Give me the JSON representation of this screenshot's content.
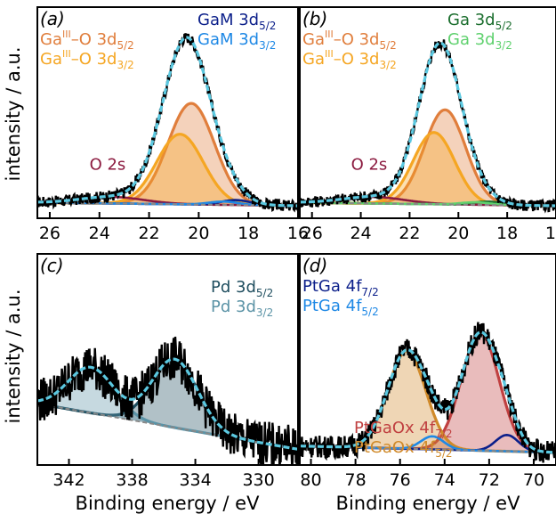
{
  "figure": {
    "xlabel": "Binding energy  /  eV",
    "ylabel": "intensity  /  a.u."
  },
  "colors": {
    "data": "#000000",
    "envelope": "#5bc8e0",
    "background": "#888888",
    "ga_oxide_52": "#e07e3c",
    "ga_oxide_32": "#f5a623",
    "O2s": "#8b1a3f",
    "ga_metal_52_a": "#0b1f8a",
    "ga_metal_32_a": "#1e88e5",
    "ga_metal_52_b": "#1b6e2e",
    "ga_metal_32_b": "#5fd16e",
    "pd_52": "#1f4e5f",
    "pd_32": "#5b93a6",
    "ptga_72": "#0b1f8a",
    "ptga_52": "#1e88e5",
    "ptgaox_72": "#c04040",
    "ptgaox_52": "#d08a2a"
  },
  "chart_data": [
    {
      "panel": "(a)",
      "type": "line",
      "xlim": [
        26.5,
        16
      ],
      "xticks": [
        "26",
        "24",
        "22",
        "20",
        "18",
        "16"
      ],
      "peaks": [
        {
          "label": "Ga^III–O 3d5/2",
          "center": 20.3,
          "height": 0.62,
          "fwhm": 2.2,
          "color": "ga_oxide_52",
          "filled": true
        },
        {
          "label": "Ga^III–O 3d3/2",
          "center": 20.75,
          "height": 0.43,
          "fwhm": 2.2,
          "color": "ga_oxide_32",
          "filled": true
        },
        {
          "label": "O 2s",
          "center": 23.5,
          "height": 0.04,
          "fwhm": 3.0,
          "color": "O2s",
          "filled": false
        },
        {
          "label": "GaM 3d5/2",
          "center": 18.5,
          "height": 0.03,
          "fwhm": 1.4,
          "color": "ga_metal_52_a",
          "filled": false
        },
        {
          "label": "GaM 3d3/2",
          "center": 19.0,
          "height": 0.02,
          "fwhm": 1.4,
          "color": "ga_metal_32_a",
          "filled": false
        }
      ],
      "baseline": [
        0.02,
        0.0
      ],
      "legend": [
        {
          "t": "Ga",
          "sup": "III",
          "m": "–O 3d",
          "sub": "5/2",
          "color": "ga_oxide_52",
          "side": "left"
        },
        {
          "t": "Ga",
          "sup": "III",
          "m": "–O 3d",
          "sub": "3/2",
          "color": "ga_oxide_32",
          "side": "left"
        },
        {
          "t": "GaM 3d",
          "sup": "",
          "m": "",
          "sub": "5/2",
          "color": "ga_metal_52_a",
          "side": "right"
        },
        {
          "t": "GaM 3d",
          "sup": "",
          "m": "",
          "sub": "3/2",
          "color": "ga_metal_32_a",
          "side": "right"
        }
      ],
      "annotation": {
        "text": "O 2s",
        "x": 24.4,
        "y": 0.22,
        "color": "O2s"
      }
    },
    {
      "panel": "(b)",
      "type": "line",
      "xlim": [
        26.5,
        16
      ],
      "xticks": [
        "26",
        "24",
        "22",
        "20",
        "18",
        "16"
      ],
      "peaks": [
        {
          "label": "Ga^III–O 3d5/2",
          "center": 20.55,
          "height": 0.58,
          "fwhm": 2.0,
          "color": "ga_oxide_52",
          "filled": true
        },
        {
          "label": "Ga^III–O 3d3/2",
          "center": 21.0,
          "height": 0.44,
          "fwhm": 2.0,
          "color": "ga_oxide_32",
          "filled": true
        },
        {
          "label": "O 2s",
          "center": 23.5,
          "height": 0.04,
          "fwhm": 3.0,
          "color": "O2s",
          "filled": false
        },
        {
          "label": "Ga 3d5/2",
          "center": 18.8,
          "height": 0.02,
          "fwhm": 1.4,
          "color": "ga_metal_52_b",
          "filled": false
        },
        {
          "label": "Ga 3d3/2",
          "center": 19.3,
          "height": 0.015,
          "fwhm": 1.4,
          "color": "ga_metal_32_b",
          "filled": false
        }
      ],
      "baseline": [
        0.02,
        0.0
      ],
      "legend": [
        {
          "t": "Ga",
          "sup": "III",
          "m": "–O 3d",
          "sub": "5/2",
          "color": "ga_oxide_52",
          "side": "left"
        },
        {
          "t": "Ga",
          "sup": "III",
          "m": "–O 3d",
          "sub": "3/2",
          "color": "ga_oxide_32",
          "side": "left"
        },
        {
          "t": "Ga 3d",
          "sup": "",
          "m": "",
          "sub": "5/2",
          "color": "ga_metal_52_b",
          "side": "right"
        },
        {
          "t": "Ga 3d",
          "sup": "",
          "m": "",
          "sub": "3/2",
          "color": "ga_metal_32_b",
          "side": "right"
        }
      ],
      "annotation": {
        "text": "O 2s",
        "x": 24.4,
        "y": 0.22,
        "color": "O2s"
      }
    },
    {
      "panel": "(c)",
      "type": "line",
      "xlim": [
        344,
        327.5
      ],
      "xticks": [
        "342",
        "338",
        "334",
        "330"
      ],
      "peaks": [
        {
          "label": "Pd 3d5/2",
          "center": 335.3,
          "height": 0.42,
          "fwhm": 3.4,
          "color": "pd_52",
          "filled": true
        },
        {
          "label": "Pd 3d3/2",
          "center": 340.6,
          "height": 0.28,
          "fwhm": 3.4,
          "color": "pd_32",
          "filled": true
        }
      ],
      "baseline": [
        0.3,
        0.02
      ],
      "legend": [
        {
          "t": "Pd 3d",
          "sup": "",
          "m": "",
          "sub": "5/2",
          "color": "pd_52",
          "side": "right"
        },
        {
          "t": "Pd 3d",
          "sup": "",
          "m": "",
          "sub": "3/2",
          "color": "pd_32",
          "side": "right"
        }
      ]
    },
    {
      "panel": "(d)",
      "type": "line",
      "xlim": [
        80.5,
        69
      ],
      "xticks": [
        "80",
        "78",
        "76",
        "74",
        "72",
        "70"
      ],
      "peaks": [
        {
          "label": "PtGaOx 4f7/2",
          "center": 72.4,
          "height": 0.72,
          "fwhm": 2.0,
          "color": "ptgaox_72",
          "filled": true
        },
        {
          "label": "PtGaOx 4f5/2",
          "center": 75.7,
          "height": 0.6,
          "fwhm": 2.0,
          "color": "ptgaox_52",
          "filled": true
        },
        {
          "label": "PtGa 4f7/2",
          "center": 71.2,
          "height": 0.1,
          "fwhm": 1.2,
          "color": "ptga_72",
          "filled": false
        },
        {
          "label": "PtGa 4f5/2",
          "center": 74.55,
          "height": 0.08,
          "fwhm": 1.2,
          "color": "ptga_52",
          "filled": false
        }
      ],
      "baseline": [
        0.04,
        0.0
      ],
      "legend": [
        {
          "t": "PtGa 4f",
          "sup": "",
          "m": "",
          "sub": "7/2",
          "color": "ptga_72",
          "side": "left"
        },
        {
          "t": "PtGa 4f",
          "sup": "",
          "m": "",
          "sub": "5/2",
          "color": "ptga_52",
          "side": "left"
        },
        {
          "t": "PtGaOx 4f",
          "sup": "",
          "m": "",
          "sub": "7/2",
          "color": "ptgaox_72",
          "side": "bottom"
        },
        {
          "t": "PtGaOx 4f",
          "sup": "",
          "m": "",
          "sub": "5/2",
          "color": "ptgaox_52",
          "side": "bottom"
        }
      ]
    }
  ]
}
